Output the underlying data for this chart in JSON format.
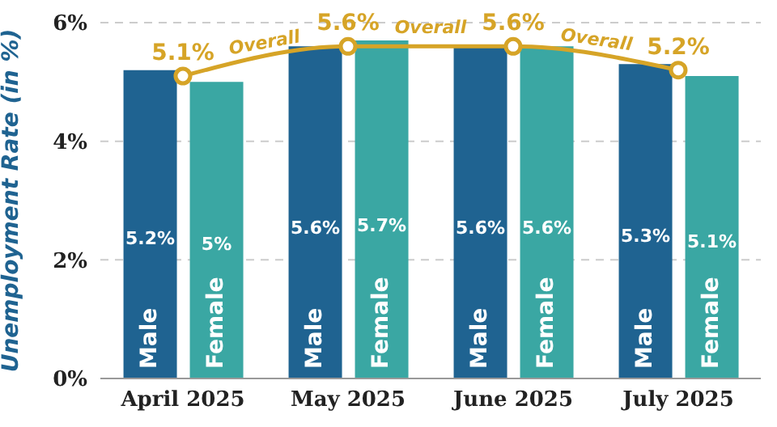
{
  "chart_data": {
    "type": "bar",
    "categories": [
      "April 2025",
      "May 2025",
      "June 2025",
      "July 2025"
    ],
    "ylabel": "Unemployment Rate (in %)",
    "ylim": [
      0,
      6
    ],
    "yticks": [
      {
        "value": 0,
        "label": "0%"
      },
      {
        "value": 2,
        "label": "2%"
      },
      {
        "value": 4,
        "label": "4%"
      },
      {
        "value": 6,
        "label": "6%"
      }
    ],
    "grid": "y",
    "marker": "circle",
    "series": [
      {
        "name": "Male",
        "color": "#1f6391",
        "values": [
          5.2,
          5.6,
          5.6,
          5.3
        ],
        "value_labels": [
          "5.2%",
          "5.6%",
          "5.6%",
          "5.3%"
        ]
      },
      {
        "name": "Female",
        "color": "#3aa7a3",
        "values": [
          5.0,
          5.7,
          5.6,
          5.1
        ],
        "value_labels": [
          "5%",
          "5.7%",
          "5.6%",
          "5.1%"
        ]
      },
      {
        "name": "Overall",
        "type": "line",
        "color": "#d6a427",
        "values": [
          5.1,
          5.6,
          5.6,
          5.2
        ],
        "value_labels": [
          "5.1%",
          "5.6%",
          "5.6%",
          "5.2%"
        ]
      }
    ]
  }
}
